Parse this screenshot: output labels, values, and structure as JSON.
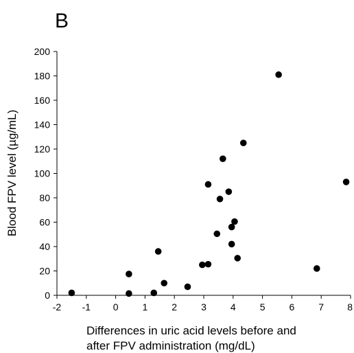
{
  "panel_label": "B",
  "chart_data": {
    "type": "scatter",
    "xlabel_lines": [
      "Differences in uric acid levels before and",
      "after FPV administration (mg/dL)"
    ],
    "ylabel": "Blood FPV level (µg/mL)",
    "xlim": [
      -2,
      8
    ],
    "ylim": [
      0,
      200
    ],
    "x_ticks": [
      "-2",
      "-1",
      "0",
      "1",
      "2",
      "3",
      "4",
      "5",
      "6",
      "7",
      "8"
    ],
    "y_ticks": [
      "0",
      "20",
      "40",
      "60",
      "80",
      "100",
      "120",
      "140",
      "160",
      "180",
      "200"
    ],
    "grid": false,
    "legend": "none",
    "marker_color": "#000000",
    "points": [
      {
        "x": -1.5,
        "y": 2
      },
      {
        "x": 0.45,
        "y": 1.5
      },
      {
        "x": 0.45,
        "y": 17.5
      },
      {
        "x": 1.3,
        "y": 2
      },
      {
        "x": 1.45,
        "y": 36
      },
      {
        "x": 1.65,
        "y": 10
      },
      {
        "x": 2.45,
        "y": 7
      },
      {
        "x": 2.95,
        "y": 25
      },
      {
        "x": 3.15,
        "y": 25.5
      },
      {
        "x": 3.15,
        "y": 91
      },
      {
        "x": 3.45,
        "y": 50.5
      },
      {
        "x": 3.55,
        "y": 79
      },
      {
        "x": 3.65,
        "y": 112
      },
      {
        "x": 3.85,
        "y": 85
      },
      {
        "x": 3.95,
        "y": 56
      },
      {
        "x": 3.95,
        "y": 42
      },
      {
        "x": 4.05,
        "y": 60.5
      },
      {
        "x": 4.15,
        "y": 30.5
      },
      {
        "x": 4.35,
        "y": 125
      },
      {
        "x": 5.55,
        "y": 181
      },
      {
        "x": 6.85,
        "y": 22
      },
      {
        "x": 7.85,
        "y": 93
      }
    ]
  }
}
